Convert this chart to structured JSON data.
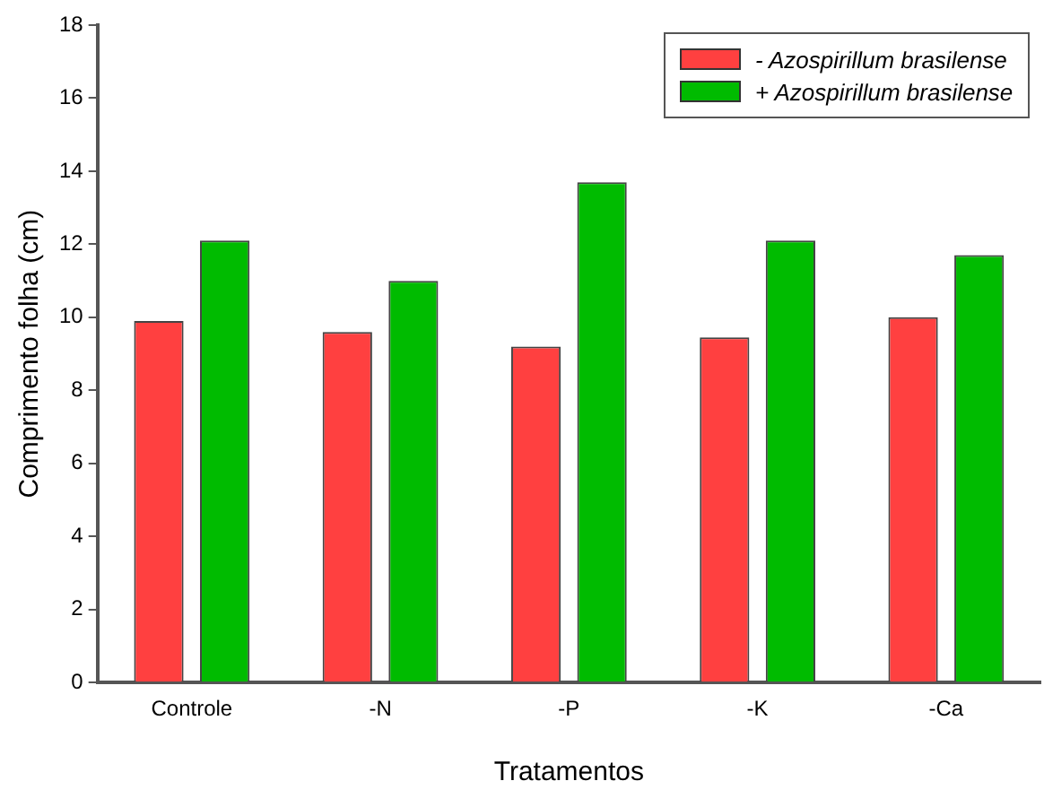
{
  "chart_data": {
    "type": "bar",
    "xlabel": "Tratamentos",
    "ylabel": "Comprimento folha (cm)",
    "categories": [
      "Controle",
      "-N",
      "-P",
      "-K",
      "-Ca"
    ],
    "series": [
      {
        "name": "- Azospirillum brasilense",
        "color": "#ff4040",
        "values": [
          9.9,
          9.6,
          9.2,
          9.45,
          10.0
        ]
      },
      {
        "name": "+ Azospirillum brasilense",
        "color": "#00bb00",
        "values": [
          12.1,
          11.0,
          13.7,
          12.1,
          11.7
        ]
      }
    ],
    "ylim": [
      0,
      18
    ],
    "yticks": [
      0,
      2,
      4,
      6,
      8,
      10,
      12,
      14,
      16,
      18
    ],
    "grid": false,
    "legend": "top right"
  }
}
